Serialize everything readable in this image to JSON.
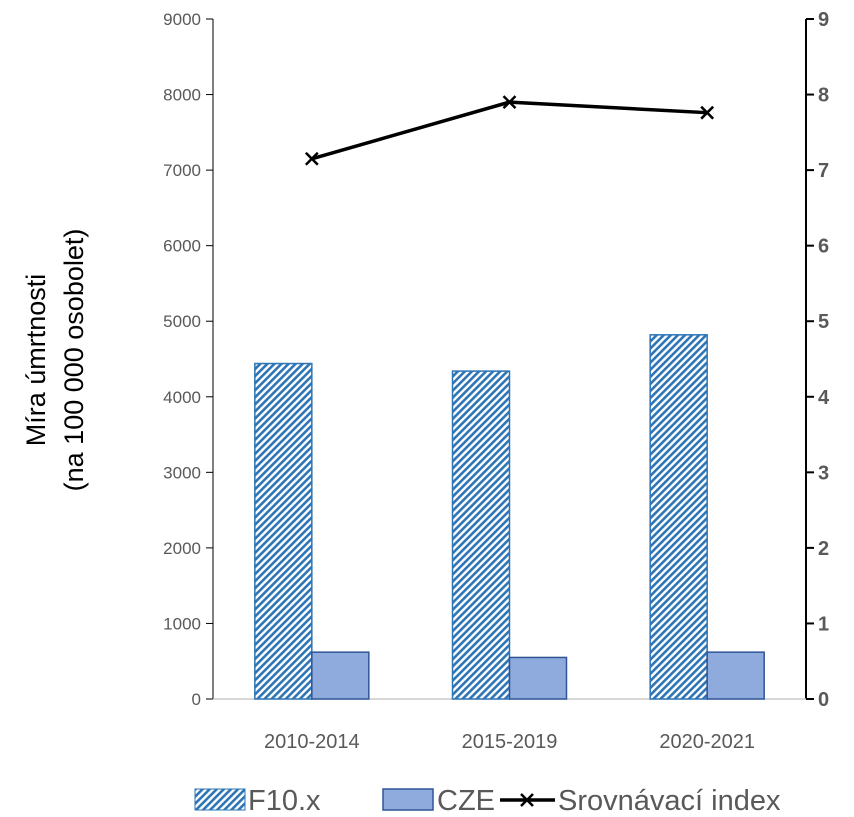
{
  "chart_data": {
    "type": "bar",
    "categories": [
      "2010-2014",
      "2015-2019",
      "2020-2021"
    ],
    "series": [
      {
        "name": "F10.x",
        "type": "bar",
        "axis": "left",
        "pattern": "diagonal-hatch",
        "color": "#2e75b6",
        "values": [
          4440,
          4340,
          4820
        ]
      },
      {
        "name": "CZE",
        "type": "bar",
        "axis": "left",
        "color": "#8faadc",
        "stroke": "#2f5597",
        "values": [
          620,
          550,
          620
        ]
      },
      {
        "name": "Srovnávací index",
        "type": "line",
        "axis": "right",
        "marker": "x",
        "color": "#000000",
        "values": [
          7.15,
          7.9,
          7.76
        ]
      }
    ],
    "ylabel": [
      "Míra úmrtnosti",
      "(na 100 000 osobolet)"
    ],
    "ylim": [
      0,
      9000
    ],
    "yticks": [
      "0",
      "1000",
      "2000",
      "3000",
      "4000",
      "5000",
      "6000",
      "7000",
      "8000",
      "9000"
    ],
    "y2lim": [
      0,
      9
    ],
    "y2ticks": [
      "0",
      "1",
      "2",
      "3",
      "4",
      "5",
      "6",
      "7",
      "8",
      "9"
    ],
    "grid": false,
    "legend_position": "bottom"
  }
}
